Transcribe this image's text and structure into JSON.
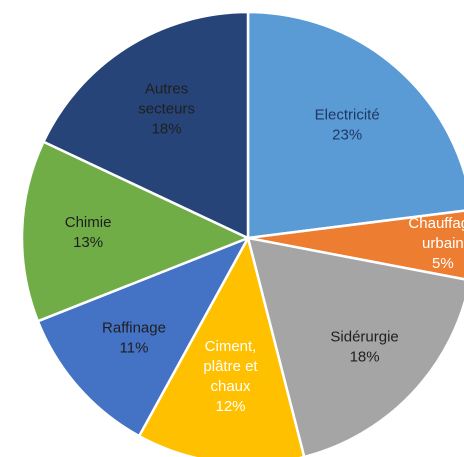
{
  "chart_data": {
    "type": "pie",
    "title": "",
    "start_angle_deg": 0,
    "direction": "clockwise",
    "slices": [
      {
        "label_lines": [
          "Electricité"
        ],
        "value": 23,
        "value_label": "23%",
        "color": "#5b9bd5",
        "text_color": "#1f3864"
      },
      {
        "label_lines": [
          "Chauffage",
          "urbain"
        ],
        "value": 5,
        "value_label": "5%",
        "color": "#ed7d31",
        "text_color": "#ffffff"
      },
      {
        "label_lines": [
          "Sidérurgie"
        ],
        "value": 18,
        "value_label": "18%",
        "color": "#a5a5a5",
        "text_color": "#1f1f1f"
      },
      {
        "label_lines": [
          "Ciment,",
          "plâtre et",
          "chaux"
        ],
        "value": 12,
        "value_label": "12%",
        "color": "#ffc000",
        "text_color": "#ffffff"
      },
      {
        "label_lines": [
          "Raffinage"
        ],
        "value": 11,
        "value_label": "11%",
        "color": "#4472c4",
        "text_color": "#1f1f1f"
      },
      {
        "label_lines": [
          "Chimie"
        ],
        "value": 13,
        "value_label": "13%",
        "color": "#70ad47",
        "text_color": "#1f1f1f"
      },
      {
        "label_lines": [
          "Autres",
          "secteurs"
        ],
        "value": 18,
        "value_label": "18%",
        "color": "#264478",
        "text_color": "#1f1f1f"
      }
    ],
    "legend": "none"
  }
}
